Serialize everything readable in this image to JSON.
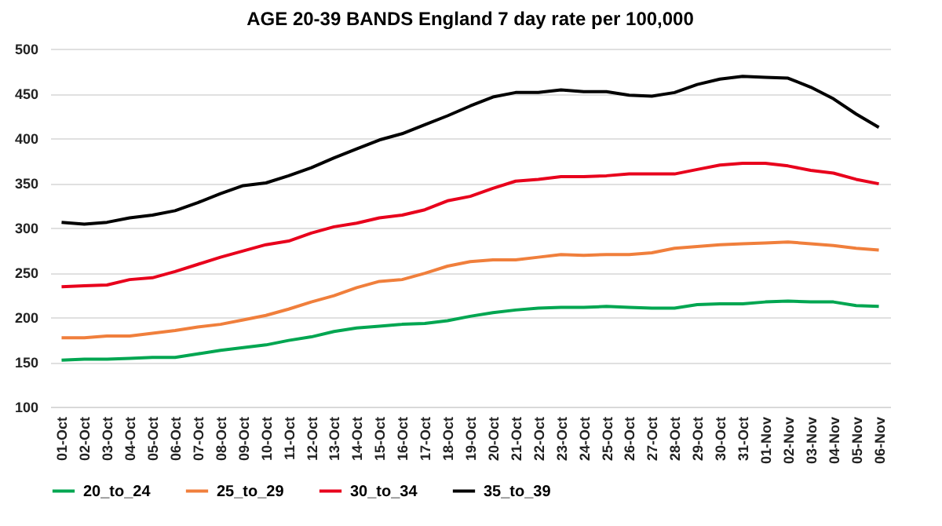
{
  "chart_data": {
    "type": "line",
    "title": "AGE 20-39 BANDS England 7 day rate per 100,000",
    "categories": [
      "01-Oct",
      "02-Oct",
      "03-Oct",
      "04-Oct",
      "05-Oct",
      "06-Oct",
      "07-Oct",
      "08-Oct",
      "09-Oct",
      "10-Oct",
      "11-Oct",
      "12-Oct",
      "13-Oct",
      "14-Oct",
      "15-Oct",
      "16-Oct",
      "17-Oct",
      "18-Oct",
      "19-Oct",
      "20-Oct",
      "21-Oct",
      "22-Oct",
      "23-Oct",
      "24-Oct",
      "25-Oct",
      "26-Oct",
      "27-Oct",
      "28-Oct",
      "29-Oct",
      "30-Oct",
      "31-Oct",
      "01-Nov",
      "02-Nov",
      "03-Nov",
      "04-Nov",
      "05-Nov",
      "06-Nov"
    ],
    "series": [
      {
        "name": "20_to_24",
        "color": "#00a651",
        "values": [
          152,
          153,
          153,
          154,
          155,
          155,
          159,
          163,
          166,
          169,
          174,
          178,
          184,
          188,
          190,
          192,
          193,
          196,
          201,
          205,
          208,
          210,
          211,
          211,
          212,
          211,
          210,
          210,
          214,
          215,
          215,
          217,
          218,
          217,
          217,
          213,
          212
        ]
      },
      {
        "name": "25_to_29",
        "color": "#f07f3c",
        "values": [
          177,
          177,
          179,
          179,
          182,
          185,
          189,
          192,
          197,
          202,
          209,
          217,
          224,
          233,
          240,
          242,
          249,
          257,
          262,
          264,
          264,
          267,
          270,
          269,
          270,
          270,
          272,
          277,
          279,
          281,
          282,
          283,
          284,
          282,
          280,
          277,
          275
        ]
      },
      {
        "name": "30_to_34",
        "color": "#e8001c",
        "values": [
          234,
          235,
          236,
          242,
          244,
          251,
          259,
          267,
          274,
          281,
          285,
          294,
          301,
          305,
          311,
          314,
          320,
          330,
          335,
          344,
          352,
          354,
          357,
          357,
          358,
          360,
          360,
          360,
          365,
          370,
          372,
          372,
          369,
          364,
          361,
          354,
          349
        ]
      },
      {
        "name": "35_to_39",
        "color": "#000000",
        "values": [
          306,
          304,
          306,
          311,
          314,
          319,
          328,
          338,
          347,
          350,
          358,
          367,
          378,
          388,
          398,
          405,
          415,
          425,
          436,
          446,
          451,
          451,
          454,
          452,
          452,
          448,
          447,
          451,
          460,
          466,
          469,
          468,
          467,
          457,
          444,
          427,
          412
        ]
      }
    ],
    "ylim": [
      100,
      500
    ],
    "yticks": [
      100,
      150,
      200,
      250,
      300,
      350,
      400,
      450,
      500
    ],
    "grid": "y",
    "legend": "bottom",
    "line_style": "solid"
  }
}
